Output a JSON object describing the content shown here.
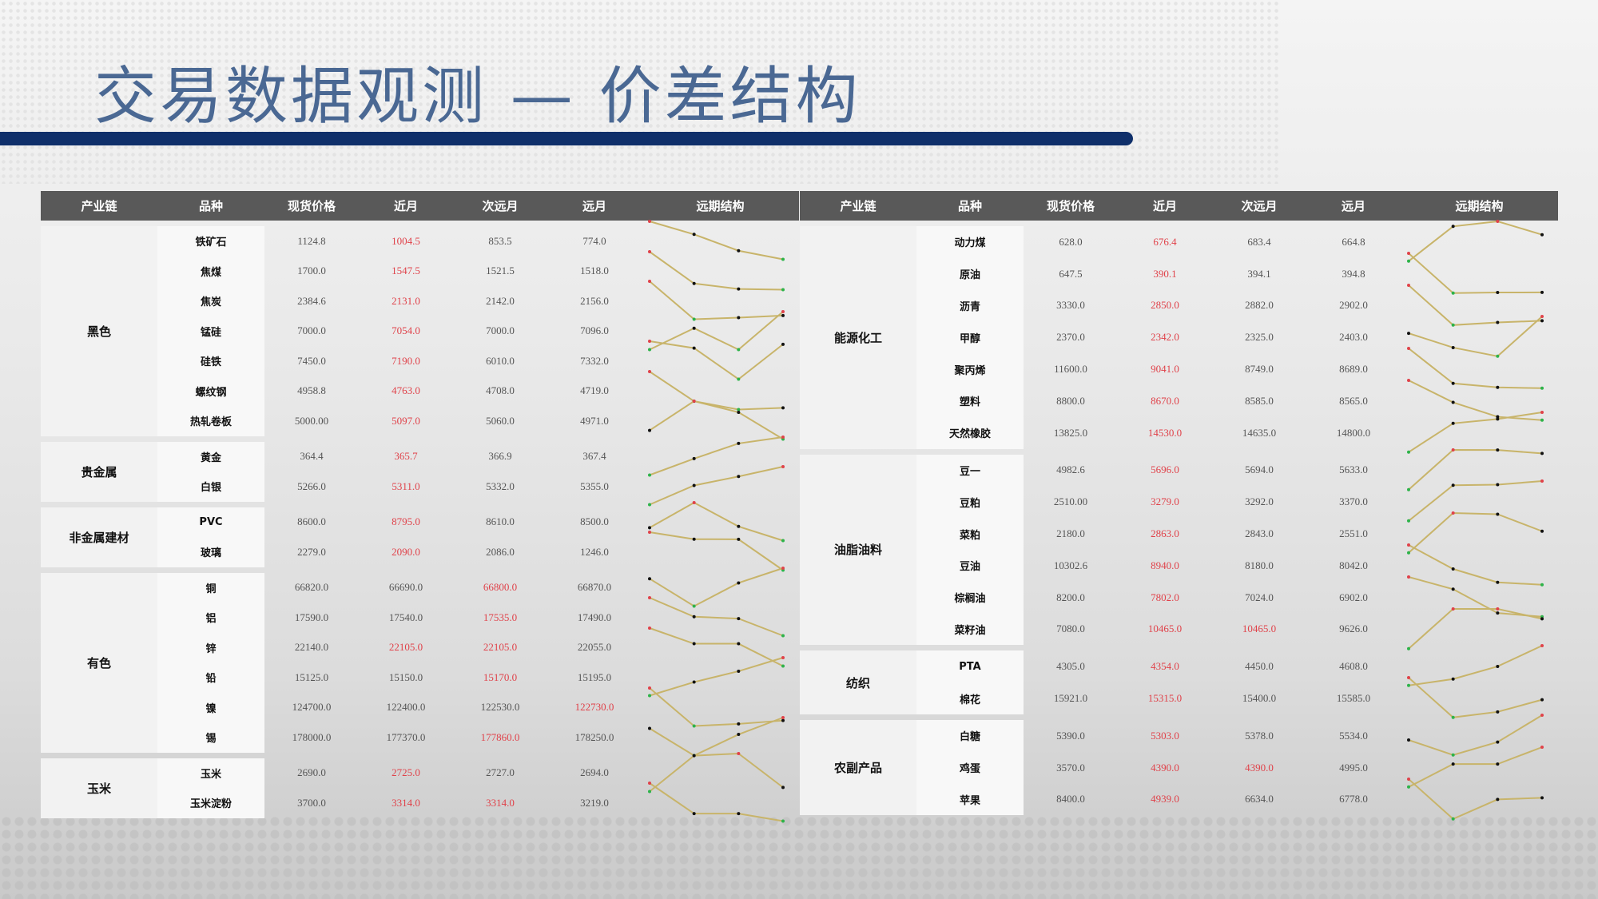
{
  "title": "交易数据观测 — 价差结构",
  "headers": [
    "产业链",
    "品种",
    "现货价格",
    "近月",
    "次远月",
    "远月",
    "远期结构"
  ],
  "colors": {
    "header_bg": "#595959",
    "highlight": "#e0424a",
    "spark_line": "#c8b46a",
    "spark_max": "#e0424a",
    "spark_min": "#2db34a",
    "spark_mid": "#111111",
    "title": "#4a6893",
    "bar": "#0f2f6a"
  },
  "tables": [
    {
      "groups": [
        {
          "name": "黑色",
          "rows": [
            {
              "name": "铁矿石",
              "values": [
                "1124.8",
                "1004.5",
                "853.5",
                "774.0"
              ],
              "highlight": [
                1
              ]
            },
            {
              "name": "焦煤",
              "values": [
                "1700.0",
                "1547.5",
                "1521.5",
                "1518.0"
              ],
              "highlight": [
                1
              ]
            },
            {
              "name": "焦炭",
              "values": [
                "2384.6",
                "2131.0",
                "2142.0",
                "2156.0"
              ],
              "highlight": [
                1
              ]
            },
            {
              "name": "锰硅",
              "values": [
                "7000.0",
                "7054.0",
                "7000.0",
                "7096.0"
              ],
              "highlight": [
                1
              ]
            },
            {
              "name": "硅铁",
              "values": [
                "7450.0",
                "7190.0",
                "6010.0",
                "7332.0"
              ],
              "highlight": [
                1
              ]
            },
            {
              "name": "螺纹钢",
              "values": [
                "4958.8",
                "4763.0",
                "4708.0",
                "4719.0"
              ],
              "highlight": [
                1
              ]
            },
            {
              "name": "热轧卷板",
              "values": [
                "5000.00",
                "5097.0",
                "5060.0",
                "4971.0"
              ],
              "highlight": [
                1
              ]
            }
          ]
        },
        {
          "name": "贵金属",
          "rows": [
            {
              "name": "黄金",
              "values": [
                "364.4",
                "365.7",
                "366.9",
                "367.4"
              ],
              "highlight": [
                1
              ]
            },
            {
              "name": "白银",
              "values": [
                "5266.0",
                "5311.0",
                "5332.0",
                "5355.0"
              ],
              "highlight": [
                1
              ]
            }
          ]
        },
        {
          "name": "非金属建材",
          "rows": [
            {
              "name": "PVC",
              "values": [
                "8600.0",
                "8795.0",
                "8610.0",
                "8500.0"
              ],
              "highlight": [
                1
              ]
            },
            {
              "name": "玻璃",
              "values": [
                "2279.0",
                "2090.0",
                "2086.0",
                "1246.0"
              ],
              "highlight": [
                1
              ]
            }
          ]
        },
        {
          "name": "有色",
          "rows": [
            {
              "name": "铜",
              "values": [
                "66820.0",
                "66690.0",
                "66800.0",
                "66870.0"
              ],
              "highlight": [
                2
              ]
            },
            {
              "name": "铝",
              "values": [
                "17590.0",
                "17540.0",
                "17535.0",
                "17490.0"
              ],
              "highlight": [
                2
              ]
            },
            {
              "name": "锌",
              "values": [
                "22140.0",
                "22105.0",
                "22105.0",
                "22055.0"
              ],
              "highlight": [
                1,
                2
              ]
            },
            {
              "name": "铅",
              "values": [
                "15125.0",
                "15150.0",
                "15170.0",
                "15195.0"
              ],
              "highlight": [
                2
              ]
            },
            {
              "name": "镍",
              "values": [
                "124700.0",
                "122400.0",
                "122530.0",
                "122730.0"
              ],
              "highlight": [
                3
              ]
            },
            {
              "name": "锡",
              "values": [
                "178000.0",
                "177370.0",
                "177860.0",
                "178250.0"
              ],
              "highlight": [
                2
              ]
            }
          ]
        },
        {
          "name": "玉米",
          "rows": [
            {
              "name": "玉米",
              "values": [
                "2690.0",
                "2725.0",
                "2727.0",
                "2694.0"
              ],
              "highlight": [
                1
              ]
            },
            {
              "name": "玉米淀粉",
              "values": [
                "3700.0",
                "3314.0",
                "3314.0",
                "3219.0"
              ],
              "highlight": [
                1,
                2
              ]
            }
          ]
        }
      ]
    },
    {
      "groups": [
        {
          "name": "能源化工",
          "rows": [
            {
              "name": "动力煤",
              "values": [
                "628.0",
                "676.4",
                "683.4",
                "664.8"
              ],
              "highlight": [
                1
              ]
            },
            {
              "name": "原油",
              "values": [
                "647.5",
                "390.1",
                "394.1",
                "394.8"
              ],
              "highlight": [
                1
              ]
            },
            {
              "name": "沥青",
              "values": [
                "3330.0",
                "2850.0",
                "2882.0",
                "2902.0"
              ],
              "highlight": [
                1
              ]
            },
            {
              "name": "甲醇",
              "values": [
                "2370.0",
                "2342.0",
                "2325.0",
                "2403.0"
              ],
              "highlight": [
                1
              ]
            },
            {
              "name": "聚丙烯",
              "values": [
                "11600.0",
                "9041.0",
                "8749.0",
                "8689.0"
              ],
              "highlight": [
                1
              ]
            },
            {
              "name": "塑料",
              "values": [
                "8800.0",
                "8670.0",
                "8585.0",
                "8565.0"
              ],
              "highlight": [
                1
              ]
            },
            {
              "name": "天然橡胶",
              "values": [
                "13825.0",
                "14530.0",
                "14635.0",
                "14800.0"
              ],
              "highlight": [
                1
              ]
            }
          ]
        },
        {
          "name": "油脂油料",
          "rows": [
            {
              "name": "豆一",
              "values": [
                "4982.6",
                "5696.0",
                "5694.0",
                "5633.0"
              ],
              "highlight": [
                1
              ]
            },
            {
              "name": "豆粕",
              "values": [
                "2510.00",
                "3279.0",
                "3292.0",
                "3370.0"
              ],
              "highlight": [
                1
              ]
            },
            {
              "name": "菜粕",
              "values": [
                "2180.0",
                "2863.0",
                "2843.0",
                "2551.0"
              ],
              "highlight": [
                1
              ]
            },
            {
              "name": "豆油",
              "values": [
                "10302.6",
                "8940.0",
                "8180.0",
                "8042.0"
              ],
              "highlight": [
                1
              ]
            },
            {
              "name": "棕榈油",
              "values": [
                "8200.0",
                "7802.0",
                "7024.0",
                "6902.0"
              ],
              "highlight": [
                1
              ]
            },
            {
              "name": "菜籽油",
              "values": [
                "7080.0",
                "10465.0",
                "10465.0",
                "9626.0"
              ],
              "highlight": [
                1,
                2
              ]
            }
          ]
        },
        {
          "name": "纺织",
          "rows": [
            {
              "name": "PTA",
              "values": [
                "4305.0",
                "4354.0",
                "4450.0",
                "4608.0"
              ],
              "highlight": [
                1
              ]
            },
            {
              "name": "棉花",
              "values": [
                "15921.0",
                "15315.0",
                "15400.0",
                "15585.0"
              ],
              "highlight": [
                1
              ]
            }
          ]
        },
        {
          "name": "农副产品",
          "rows": [
            {
              "name": "白糖",
              "values": [
                "5390.0",
                "5303.0",
                "5378.0",
                "5534.0"
              ],
              "highlight": [
                1
              ]
            },
            {
              "name": "鸡蛋",
              "values": [
                "3570.0",
                "4390.0",
                "4390.0",
                "4995.0"
              ],
              "highlight": [
                1,
                2
              ]
            },
            {
              "name": "苹果",
              "values": [
                "8400.0",
                "4939.0",
                "6634.0",
                "6778.0"
              ],
              "highlight": [
                1
              ]
            }
          ]
        }
      ]
    }
  ]
}
